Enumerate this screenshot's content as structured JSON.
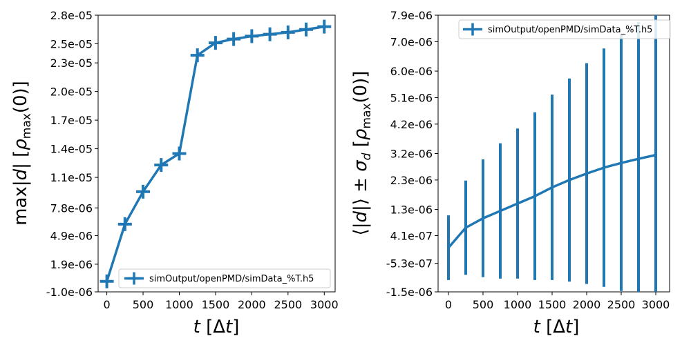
{
  "chart_data": [
    {
      "type": "line",
      "title": "",
      "xlabel_text": "t [Δt]",
      "ylabel_text": "max|d| [ρmax(0)]",
      "xlim": [
        -120,
        3150
      ],
      "ylim": [
        -1e-06,
        2.8e-05
      ],
      "x_ticks": [
        0,
        500,
        1000,
        1500,
        2000,
        2500,
        3000
      ],
      "x_tick_labels": [
        "0",
        "500",
        "1000",
        "1500",
        "2000",
        "2500",
        "3000"
      ],
      "y_ticks": [
        -1e-06,
        1.9e-06,
        4.9e-06,
        7.8e-06,
        1.1e-05,
        1.4e-05,
        1.7e-05,
        2e-05,
        2.3e-05,
        2.5e-05,
        2.8e-05
      ],
      "y_tick_labels": [
        "-1.0e-06",
        "1.9e-06",
        "4.9e-06",
        "7.8e-06",
        "1.1e-05",
        "1.4e-05",
        "1.7e-05",
        "2.0e-05",
        "2.3e-05",
        "2.5e-05",
        "2.8e-05"
      ],
      "legend": {
        "label": "simOutput/openPMD/simData_%T.h5",
        "position": "lower-right"
      },
      "series": [
        {
          "name": "simOutput/openPMD/simData_%T.h5",
          "marker": "plus",
          "x": [
            0,
            250,
            500,
            750,
            1000,
            1250,
            1500,
            1750,
            2000,
            2250,
            2500,
            2750,
            3000
          ],
          "y": [
            1e-07,
            6.1e-06,
            9.5e-06,
            1.23e-05,
            1.35e-05,
            2.38e-05,
            2.51e-05,
            2.55e-05,
            2.58e-05,
            2.6e-05,
            2.62e-05,
            2.65e-05,
            2.68e-05
          ]
        }
      ]
    },
    {
      "type": "line",
      "title": "",
      "xlabel_text": "t [Δt]",
      "ylabel_text": "⟨|d|⟩ ± σd [ρmax(0)]",
      "xlim": [
        -150,
        3200
      ],
      "ylim": [
        -1.5e-06,
        7.9e-06
      ],
      "x_ticks": [
        0,
        500,
        1000,
        1500,
        2000,
        2500,
        3000
      ],
      "x_tick_labels": [
        "0",
        "500",
        "1000",
        "1500",
        "2000",
        "2500",
        "3000"
      ],
      "y_ticks": [
        -1.5e-06,
        -5.3e-07,
        4.1e-07,
        1.3e-06,
        2.3e-06,
        3.2e-06,
        4.2e-06,
        5.1e-06,
        6e-06,
        7e-06,
        7.9e-06
      ],
      "y_tick_labels": [
        "-1.5e-06",
        "-5.3e-07",
        "4.1e-07",
        "1.3e-06",
        "2.3e-06",
        "3.2e-06",
        "4.2e-06",
        "5.1e-06",
        "6.0e-06",
        "7.0e-06",
        "7.9e-06"
      ],
      "legend": {
        "label": "simOutput/openPMD/simData_%T.h5",
        "position": "top-right"
      },
      "series": [
        {
          "name": "simOutput/openPMD/simData_%T.h5",
          "marker": "errorbar",
          "x": [
            0,
            250,
            500,
            750,
            1000,
            1250,
            1500,
            1750,
            2000,
            2250,
            2500,
            2750,
            3000
          ],
          "y": [
            0.0,
            6.8e-07,
            1e-06,
            1.25e-06,
            1.5e-06,
            1.75e-06,
            2.05e-06,
            2.3e-06,
            2.52e-06,
            2.72e-06,
            2.88e-06,
            3.02e-06,
            3.15e-06
          ],
          "err": [
            1.1e-06,
            1.6e-06,
            2e-06,
            2.3e-06,
            2.55e-06,
            2.85e-06,
            3.15e-06,
            3.45e-06,
            3.75e-06,
            4.05e-06,
            4.35e-06,
            4.65e-06,
            4.95e-06
          ]
        }
      ]
    }
  ]
}
